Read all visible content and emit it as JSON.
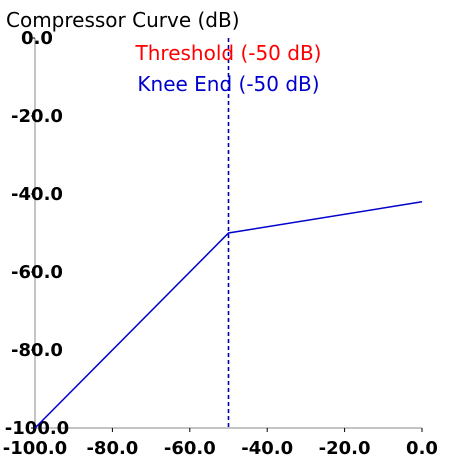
{
  "chart_data": {
    "type": "line",
    "title": "Compressor Curve (dB)",
    "xlabel": "",
    "ylabel": "",
    "xlim": [
      -100,
      0
    ],
    "ylim": [
      -100,
      0
    ],
    "x_ticks": [
      "-100.0",
      "-80.0",
      "-60.0",
      "-40.0",
      "-20.0",
      "0.0"
    ],
    "x_tick_values": [
      -100,
      -80,
      -60,
      -40,
      -20,
      0
    ],
    "y_ticks": [
      "0.0",
      "-20.0",
      "-40.0",
      "-60.0",
      "-80.0",
      "-100.0"
    ],
    "y_tick_values": [
      0,
      -20,
      -40,
      -60,
      -80,
      -100
    ],
    "grid": false,
    "series": [
      {
        "x": [
          -100,
          -50,
          0
        ],
        "y": [
          -100,
          -50,
          -42
        ],
        "color": "#0000cc"
      }
    ],
    "markers": [
      {
        "x": -50,
        "color": "#0000aa",
        "style": "dashed"
      }
    ],
    "annotations": [
      {
        "text": "Threshold (-50 dB)",
        "color": "#ff0000"
      },
      {
        "text": "Knee End (-50 dB)",
        "color": "#0000cc"
      }
    ]
  }
}
